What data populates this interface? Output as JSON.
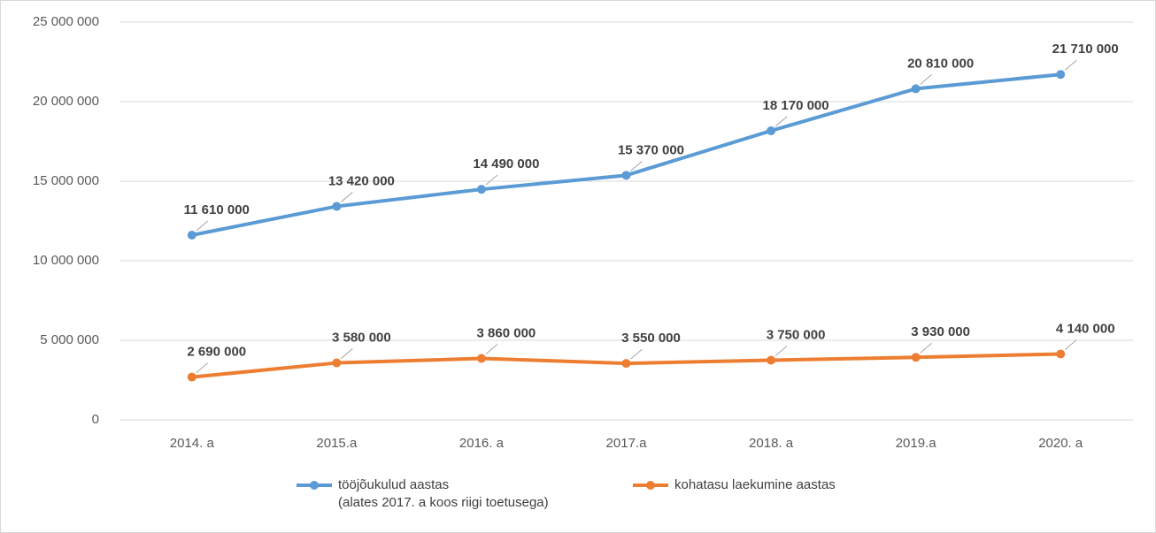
{
  "chart_data": {
    "type": "line",
    "categories": [
      "2014. a",
      "2015.a",
      "2016. a",
      "2017.a",
      "2018. a",
      "2019.a",
      "2020. a"
    ],
    "series": [
      {
        "name": "tööjõukulud aastas\n(alates 2017. a koos riigi toetusega)",
        "color": "#5b9bd5",
        "values": [
          11610000,
          13420000,
          14490000,
          15370000,
          18170000,
          20810000,
          21710000
        ],
        "value_labels": [
          "11 610 000",
          "13 420 000",
          "14 490 000",
          "15 370 000",
          "18 170 000",
          "20 810 000",
          "21 710 000"
        ]
      },
      {
        "name": "kohatasu laekumine aastas",
        "color": "#ed7d31",
        "values": [
          2690000,
          3580000,
          3860000,
          3550000,
          3750000,
          3930000,
          4140000
        ],
        "value_labels": [
          "2 690 000",
          "3 580 000",
          "3 860 000",
          "3 550 000",
          "3 750 000",
          "3 930 000",
          "4 140 000"
        ]
      }
    ],
    "ylim": [
      0,
      25000000
    ],
    "yticks": [
      0,
      {
        "value": 5000000,
        "label": "5 000 000"
      },
      {
        "value": 10000000,
        "label": "10 000 000"
      },
      {
        "value": 15000000,
        "label": "15 000 000"
      },
      {
        "value": 20000000,
        "label": "20 000 000"
      },
      {
        "value": 25000000,
        "label": "25 000 000"
      }
    ],
    "grid": true
  }
}
